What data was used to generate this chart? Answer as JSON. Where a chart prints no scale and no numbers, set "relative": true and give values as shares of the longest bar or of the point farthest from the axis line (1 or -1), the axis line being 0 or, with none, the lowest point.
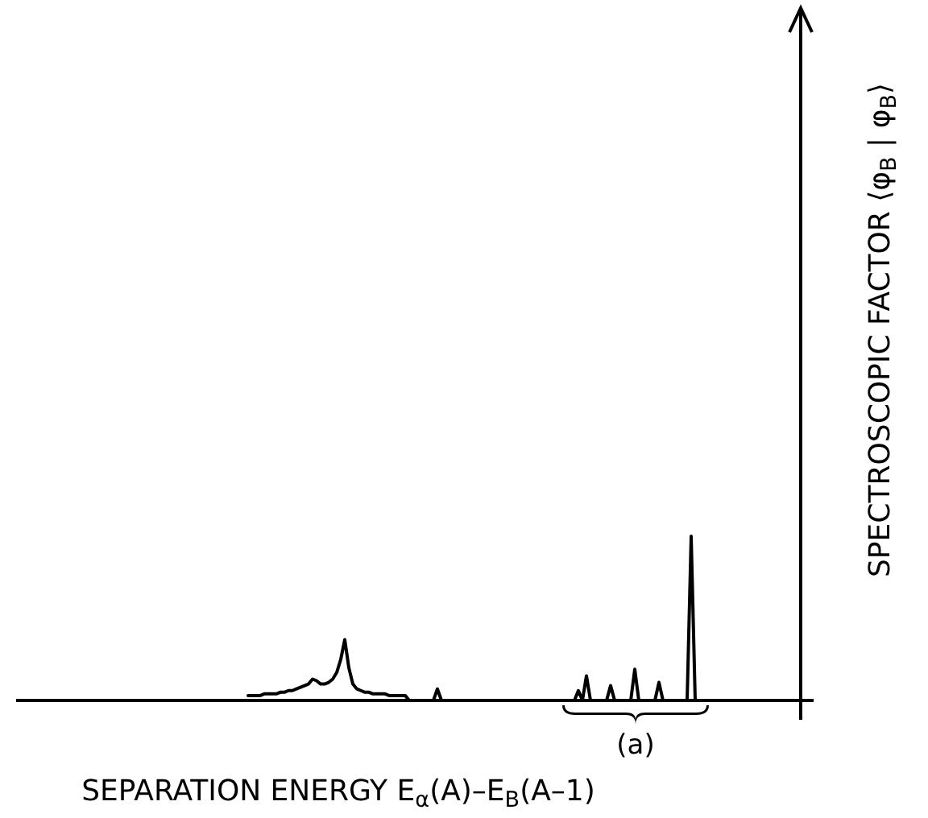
{
  "chart_data": {
    "type": "line",
    "relative": true,
    "xlabel": "SEPARATION ENERGY E$_{α}$(A)–E$_{B}$(A–1)",
    "ylabel": "SPECTROSCOPIC FACTOR ⟨φ$_{B}$ | φ$_{B}$⟩",
    "annotations": [
      "(a)"
    ],
    "categories": [
      null,
      null,
      null,
      null,
      null,
      null,
      null,
      null,
      null,
      null,
      null,
      null,
      null,
      null,
      null,
      null,
      null,
      null,
      null,
      null,
      null,
      null,
      null,
      null,
      null,
      null,
      null,
      null,
      null,
      null,
      null,
      null,
      null,
      null,
      null,
      null,
      null,
      null,
      null,
      null,
      null,
      null,
      null,
      null,
      null,
      null,
      null,
      null,
      null,
      null,
      null,
      null,
      null,
      null,
      null,
      null,
      null,
      null,
      null,
      null,
      null,
      null,
      null,
      null,
      null,
      null,
      null,
      null,
      null,
      null,
      null,
      null,
      null,
      null,
      null,
      null,
      null,
      null,
      null,
      null,
      null,
      null,
      null,
      null,
      null,
      null,
      null,
      null,
      null,
      null,
      null,
      null,
      null,
      null,
      null,
      null,
      null,
      null,
      null,
      null,
      null,
      null,
      null,
      null,
      null,
      null,
      null,
      null,
      null,
      null,
      null,
      null,
      null,
      null,
      null,
      null,
      null,
      null,
      null,
      null,
      null,
      null,
      null,
      null,
      null,
      null,
      null,
      null,
      null,
      null,
      null,
      null,
      null,
      null,
      null,
      null,
      null,
      null,
      null,
      null,
      null
    ],
    "series": [
      {
        "color": "#000000",
        "values": [
          0.03,
          0.03,
          0.03,
          0.03,
          0.04,
          0.04,
          0.04,
          0.04,
          0.05,
          0.05,
          0.06,
          0.06,
          0.07,
          0.08,
          0.09,
          0.1,
          0.13,
          0.12,
          0.1,
          0.1,
          0.11,
          0.13,
          0.17,
          0.25,
          0.37,
          0.2,
          0.1,
          0.07,
          0.06,
          0.05,
          0.05,
          0.04,
          0.04,
          0.04,
          0.04,
          0.03,
          0.03,
          0.03,
          0.03,
          0.03,
          0,
          0,
          0,
          0,
          0,
          0,
          0,
          0.07,
          0,
          0,
          0,
          0,
          0,
          0,
          0,
          0,
          0,
          0,
          0,
          0,
          0,
          0,
          0,
          0,
          0,
          0,
          0,
          0,
          0,
          0,
          0,
          0,
          0,
          0,
          0,
          0,
          0,
          0,
          0,
          0,
          0,
          0,
          0.06,
          0,
          0.15,
          0,
          0,
          0,
          0,
          0,
          0.09,
          0,
          0,
          0,
          0,
          0,
          0.19,
          0,
          0,
          0,
          0,
          0,
          0.11,
          0,
          0,
          0,
          0,
          0,
          0,
          0,
          1,
          0,
          0,
          0,
          0,
          0,
          0,
          0,
          0,
          0,
          0,
          0,
          0,
          0,
          0,
          0,
          0,
          0,
          0,
          0,
          0,
          0,
          0,
          0,
          0,
          0,
          0,
          0,
          0,
          0,
          0
        ]
      }
    ]
  }
}
